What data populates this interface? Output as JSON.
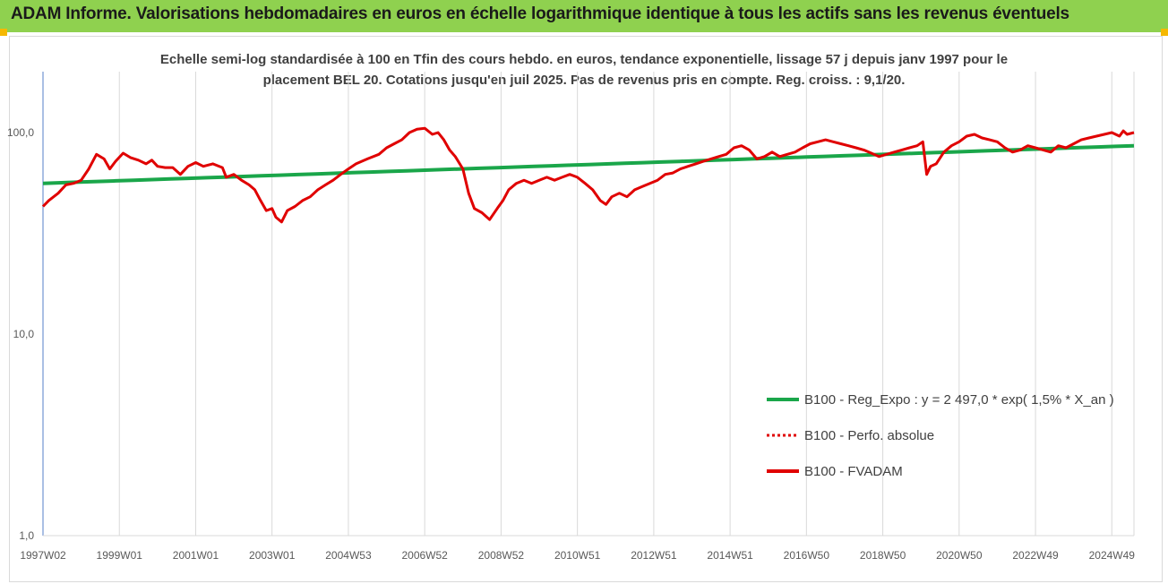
{
  "header": {
    "title": "ADAM Informe. Valorisations hebdomadaires en euros en échelle logarithmique identique à tous les actifs sans les revenus éventuels"
  },
  "colors": {
    "header_bg": "#8fd14f",
    "trend": "#1aa64a",
    "series": "#e00000",
    "grid": "#d9d9d9",
    "axis": "#8eaadb"
  },
  "chart_data": {
    "type": "line",
    "title": "Echelle semi-log standardisée à 100 en Tfin des cours hebdo. en euros, tendance exponentielle, lissage 57 j depuis janv 1997 pour le",
    "subtitle": "placement BEL 20. Cotations jusqu'en juil 2025. Pas de revenus pris en compte. Reg. croiss. : 9,1/20.",
    "xlabel": "",
    "ylabel": "",
    "y_scale": "log",
    "ylim": [
      1,
      250
    ],
    "y_ticks": [
      {
        "value": 1,
        "label": "1,0"
      },
      {
        "value": 10,
        "label": "10,0"
      },
      {
        "value": 100,
        "label": "100,0"
      }
    ],
    "xlim": [
      1997.0,
      2025.58
    ],
    "x_ticks": [
      {
        "x": 1997.0,
        "label": "1997W02"
      },
      {
        "x": 1999.0,
        "label": "1999W01"
      },
      {
        "x": 2001.0,
        "label": "2001W01"
      },
      {
        "x": 2003.0,
        "label": "2003W01"
      },
      {
        "x": 2005.0,
        "label": "2004W53"
      },
      {
        "x": 2007.0,
        "label": "2006W52"
      },
      {
        "x": 2009.0,
        "label": "2008W52"
      },
      {
        "x": 2011.0,
        "label": "2010W51"
      },
      {
        "x": 2013.0,
        "label": "2012W51"
      },
      {
        "x": 2015.0,
        "label": "2014W51"
      },
      {
        "x": 2017.0,
        "label": "2016W50"
      },
      {
        "x": 2019.0,
        "label": "2018W50"
      },
      {
        "x": 2021.0,
        "label": "2020W50"
      },
      {
        "x": 2023.0,
        "label": "2022W49"
      },
      {
        "x": 2025.0,
        "label": "2024W49"
      }
    ],
    "grid": "vertical",
    "legend_position": "bottom-right",
    "legend": [
      {
        "label": "B100 - Reg_Expo : y = 2 497,0 * exp( 1,5% *  X_an )",
        "style": "solid",
        "color": "#1aa64a"
      },
      {
        "label": "B100 - Perfo. absolue",
        "style": "dotted",
        "color": "#e00000"
      },
      {
        "label": "B100 - FVADAM",
        "style": "solid",
        "color": "#e00000"
      }
    ],
    "series": [
      {
        "name": "B100 - Reg_Expo",
        "color": "#1aa64a",
        "x": [
          1997.0,
          2025.58
        ],
        "y": [
          56,
          86
        ]
      },
      {
        "name": "B100 - FVADAM",
        "color": "#e00000",
        "x": [
          1997.0,
          1997.15,
          1997.4,
          1997.6,
          1997.8,
          1998.0,
          1998.2,
          1998.4,
          1998.6,
          1998.75,
          1998.9,
          1999.1,
          1999.3,
          1999.5,
          1999.7,
          1999.85,
          2000.0,
          2000.2,
          2000.4,
          2000.6,
          2000.8,
          2001.0,
          2001.2,
          2001.45,
          2001.7,
          2001.8,
          2002.0,
          2002.2,
          2002.4,
          2002.55,
          2002.7,
          2002.85,
          2003.0,
          2003.1,
          2003.25,
          2003.4,
          2003.6,
          2003.8,
          2004.0,
          2004.2,
          2004.4,
          2004.6,
          2004.8,
          2005.0,
          2005.2,
          2005.5,
          2005.8,
          2006.0,
          2006.2,
          2006.4,
          2006.6,
          2006.8,
          2007.0,
          2007.2,
          2007.35,
          2007.5,
          2007.65,
          2007.8,
          2008.0,
          2008.15,
          2008.3,
          2008.5,
          2008.7,
          2008.9,
          2009.05,
          2009.2,
          2009.4,
          2009.6,
          2009.8,
          2010.0,
          2010.2,
          2010.4,
          2010.6,
          2010.8,
          2011.0,
          2011.2,
          2011.4,
          2011.6,
          2011.75,
          2011.9,
          2012.1,
          2012.3,
          2012.5,
          2012.7,
          2012.9,
          2013.1,
          2013.3,
          2013.5,
          2013.7,
          2013.9,
          2014.1,
          2014.3,
          2014.5,
          2014.7,
          2014.9,
          2015.1,
          2015.3,
          2015.5,
          2015.7,
          2015.9,
          2016.1,
          2016.3,
          2016.5,
          2016.7,
          2016.9,
          2017.1,
          2017.3,
          2017.5,
          2017.7,
          2017.9,
          2018.1,
          2018.3,
          2018.5,
          2018.7,
          2018.9,
          2019.1,
          2019.3,
          2019.5,
          2019.7,
          2019.9,
          2020.05,
          2020.15,
          2020.25,
          2020.4,
          2020.6,
          2020.8,
          2021.0,
          2021.2,
          2021.4,
          2021.6,
          2021.8,
          2022.0,
          2022.2,
          2022.4,
          2022.6,
          2022.8,
          2023.0,
          2023.2,
          2023.4,
          2023.6,
          2023.8,
          2024.0,
          2024.2,
          2024.4,
          2024.6,
          2024.8,
          2025.0,
          2025.2,
          2025.3,
          2025.4,
          2025.58
        ],
        "y": [
          43,
          46,
          50,
          55,
          56,
          58,
          66,
          78,
          74,
          66,
          72,
          79,
          75,
          73,
          70,
          73,
          68,
          67,
          67,
          62,
          68,
          71,
          68,
          70,
          67,
          60,
          62,
          58,
          55,
          52,
          46,
          41,
          42,
          38,
          36,
          41,
          43,
          46,
          48,
          52,
          55,
          58,
          62,
          66,
          70,
          74,
          78,
          84,
          88,
          92,
          100,
          104,
          105,
          98,
          100,
          92,
          82,
          76,
          66,
          50,
          42,
          40,
          37,
          42,
          46,
          52,
          56,
          58,
          56,
          58,
          60,
          58,
          60,
          62,
          60,
          56,
          52,
          46,
          44,
          48,
          50,
          48,
          52,
          54,
          56,
          58,
          62,
          63,
          66,
          68,
          70,
          72,
          74,
          76,
          78,
          84,
          86,
          82,
          74,
          76,
          80,
          76,
          78,
          80,
          84,
          88,
          90,
          92,
          90,
          88,
          86,
          84,
          82,
          79,
          76,
          78,
          80,
          82,
          84,
          86,
          90,
          62,
          68,
          70,
          80,
          86,
          90,
          96,
          98,
          94,
          92,
          90,
          84,
          80,
          82,
          86,
          84,
          82,
          80,
          86,
          84,
          88,
          92,
          94,
          96,
          98,
          100,
          96,
          102,
          98,
          100
        ]
      }
    ]
  }
}
